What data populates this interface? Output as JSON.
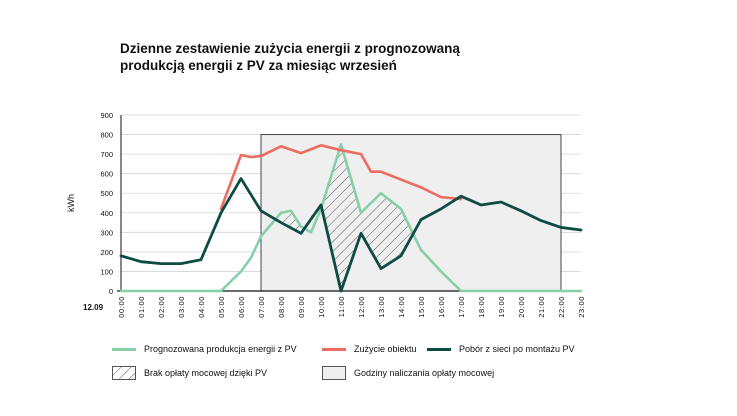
{
  "title_line1": "Dzienne zestawienie zużycia energii z prognozowaną",
  "title_line2": "produkcją energii z PV za miesiąc wrzesień",
  "chart_data": {
    "type": "line",
    "title": "Dzienne zestawienie zużycia energii z prognozowaną produkcją energii z PV za miesiąc wrzesień",
    "ylabel": "kWh",
    "xlabel": "",
    "date_label": "12.09",
    "ylim": [
      0,
      900
    ],
    "yticks": [
      0,
      100,
      200,
      300,
      400,
      500,
      600,
      700,
      800,
      900
    ],
    "categories": [
      "00:00",
      "01:00",
      "02:00",
      "03:00",
      "04:00",
      "05:00",
      "06:00",
      "07:00",
      "08:00",
      "09:00",
      "10:00",
      "11:00",
      "12:00",
      "13:00",
      "14:00",
      "15:00",
      "16:00",
      "17:00",
      "18:00",
      "19:00",
      "20:00",
      "21:00",
      "22:00",
      "23:00"
    ],
    "grid": "horizontal",
    "legend_position": "bottom",
    "series": [
      {
        "name": "Prognozowana produkcja energii z PV",
        "color": "#86cfa7",
        "points": [
          [
            0,
            0
          ],
          [
            1,
            0
          ],
          [
            2,
            0
          ],
          [
            3,
            0
          ],
          [
            4,
            0
          ],
          [
            5,
            0
          ],
          [
            6,
            100
          ],
          [
            6.5,
            170
          ],
          [
            7,
            280
          ],
          [
            8,
            400
          ],
          [
            8.5,
            410
          ],
          [
            9,
            330
          ],
          [
            9.5,
            300
          ],
          [
            10,
            420
          ],
          [
            11,
            750
          ],
          [
            12,
            400
          ],
          [
            13,
            500
          ],
          [
            14,
            420
          ],
          [
            15,
            210
          ],
          [
            16,
            100
          ],
          [
            17,
            0
          ],
          [
            18,
            0
          ],
          [
            19,
            0
          ],
          [
            20,
            0
          ],
          [
            21,
            0
          ],
          [
            22,
            0
          ],
          [
            23,
            0
          ]
        ]
      },
      {
        "name": "Zużycie obiektu",
        "color": "#ee6c5f",
        "points": [
          [
            5,
            420
          ],
          [
            6,
            695
          ],
          [
            6.5,
            685
          ],
          [
            7,
            690
          ],
          [
            8,
            740
          ],
          [
            9,
            705
          ],
          [
            10,
            745
          ],
          [
            11,
            720
          ],
          [
            12,
            700
          ],
          [
            12.5,
            610
          ],
          [
            13,
            610
          ],
          [
            14,
            570
          ],
          [
            15,
            530
          ],
          [
            16,
            480
          ],
          [
            17,
            470
          ]
        ]
      },
      {
        "name": "Pobór z sieci po montażu PV",
        "color": "#0e4b43",
        "points": [
          [
            0,
            180
          ],
          [
            1,
            150
          ],
          [
            2,
            140
          ],
          [
            3,
            140
          ],
          [
            4,
            160
          ],
          [
            5,
            400
          ],
          [
            6,
            575
          ],
          [
            7,
            410
          ],
          [
            8,
            350
          ],
          [
            9,
            295
          ],
          [
            10,
            440
          ],
          [
            11,
            0
          ],
          [
            12,
            295
          ],
          [
            13,
            115
          ],
          [
            14,
            180
          ],
          [
            15,
            365
          ],
          [
            16,
            420
          ],
          [
            17,
            485
          ],
          [
            18,
            440
          ],
          [
            19,
            455
          ],
          [
            20,
            410
          ],
          [
            21,
            360
          ],
          [
            22,
            325
          ],
          [
            23,
            312
          ]
        ]
      }
    ],
    "shaded_region": {
      "name": "Godziny naliczania opłaty mocowej",
      "x_start": "07:00",
      "x_end": "22:00",
      "y_range": [
        0,
        800
      ],
      "color": "#efefef"
    },
    "hatched_region": {
      "name": "Brak opłaty mocowej dzięki PV",
      "description_range": "07:00–14:00"
    }
  },
  "legend": {
    "pv": "Prognozowana produkcja energii z PV",
    "consumption": "Zużycie obiektu",
    "grid": "Pobór z sieci po montażu PV",
    "hatch": "Brak opłaty mocowej dzięki PV",
    "shade": "Godziny naliczania opłaty mocowej"
  },
  "colors": {
    "pv": "#86cfa7",
    "consumption": "#ee6c5f",
    "grid": "#0e4b43",
    "shade": "#efefef"
  }
}
